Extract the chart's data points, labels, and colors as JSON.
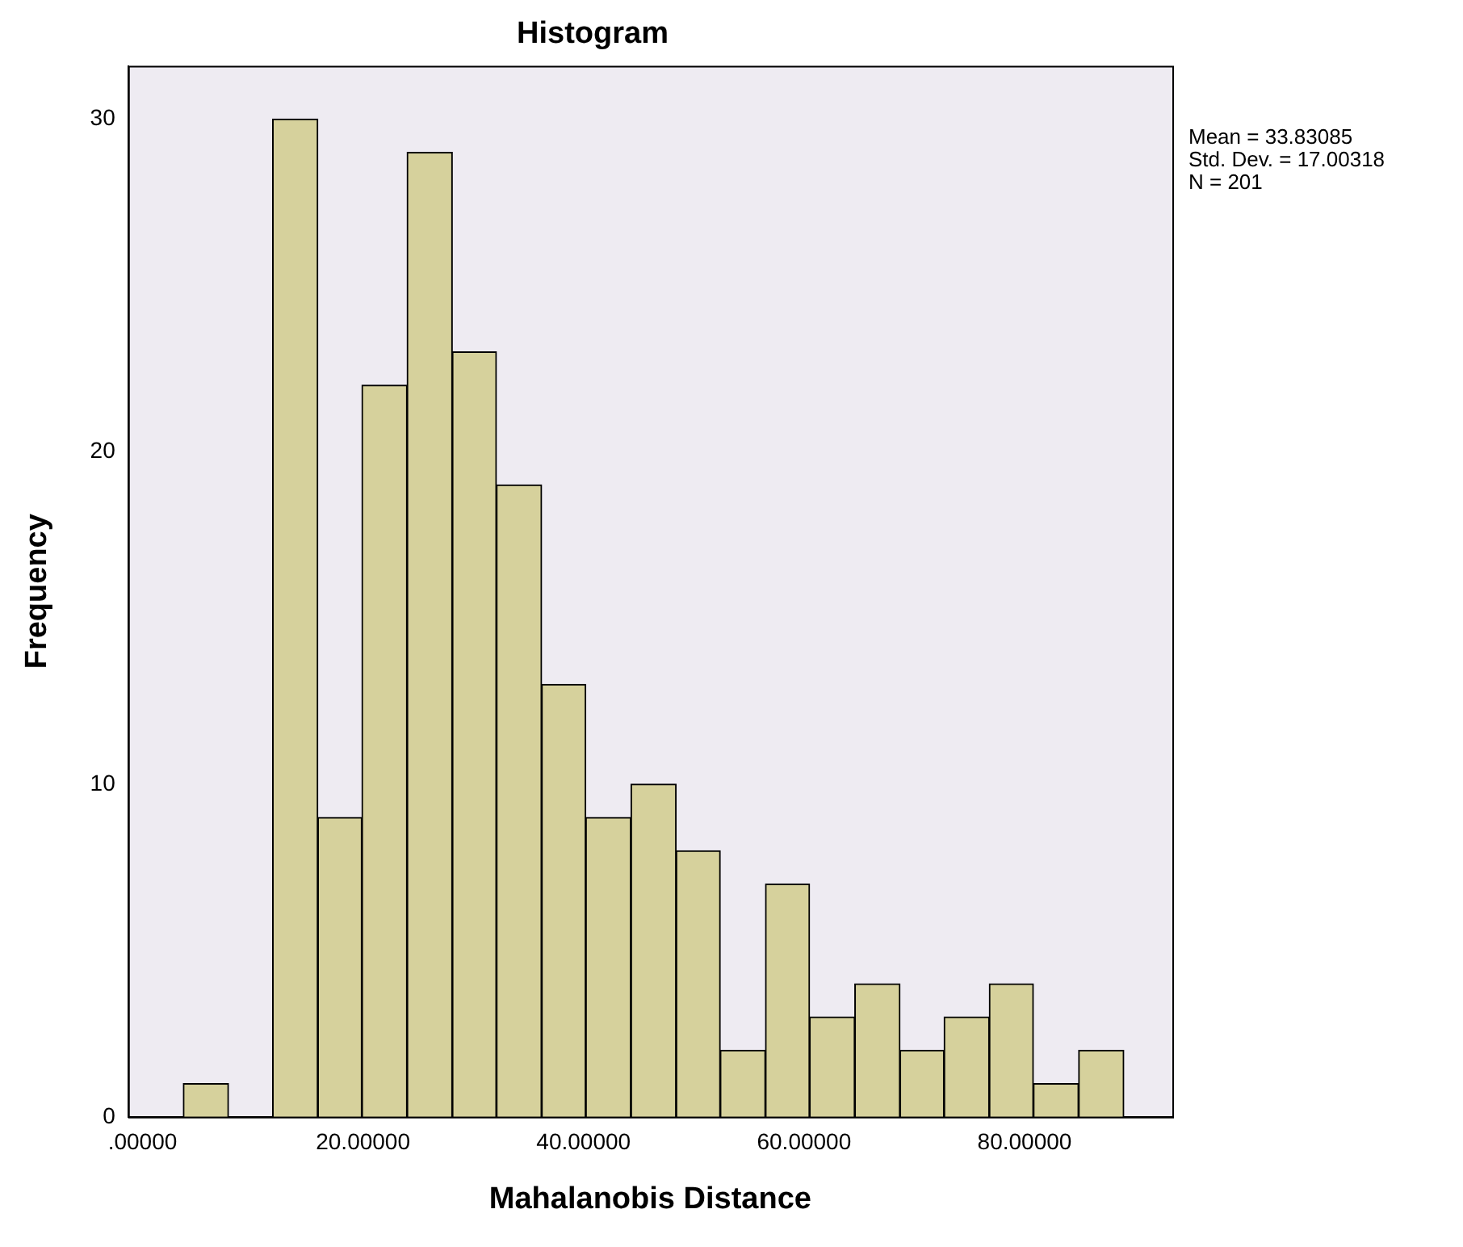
{
  "chart_data": {
    "type": "histogram",
    "title": "Histogram",
    "xlabel": "Mahalanobis Distance",
    "ylabel": "Frequency",
    "bins": [
      3.7,
      7.8,
      11.8,
      15.9,
      19.9,
      24.0,
      28.1,
      32.1,
      36.2,
      40.2,
      44.3,
      48.4,
      52.4,
      56.5,
      60.5,
      64.6,
      68.7,
      72.7,
      76.8,
      80.8,
      84.9,
      89.0
    ],
    "values": [
      1,
      0,
      30,
      9,
      22,
      29,
      23,
      19,
      13,
      9,
      10,
      8,
      2,
      7,
      3,
      4,
      2,
      3,
      4,
      1,
      2
    ],
    "color": "#d6d19c",
    "xlim": [
      -1.3,
      93.4
    ],
    "xticks": [
      {
        "value": 0,
        "label": ".00000"
      },
      {
        "value": 20,
        "label": "20.00000"
      },
      {
        "value": 40,
        "label": "40.00000"
      },
      {
        "value": 60,
        "label": "60.00000"
      },
      {
        "value": 80,
        "label": "80.00000"
      }
    ],
    "ylim": [
      0,
      31.6
    ],
    "yticks": [
      0,
      10,
      20,
      30
    ],
    "grid": false,
    "legend": false,
    "annotations": [
      "Mean = 33.83085",
      "Std. Dev. = 17.00318",
      "N = 201"
    ]
  }
}
